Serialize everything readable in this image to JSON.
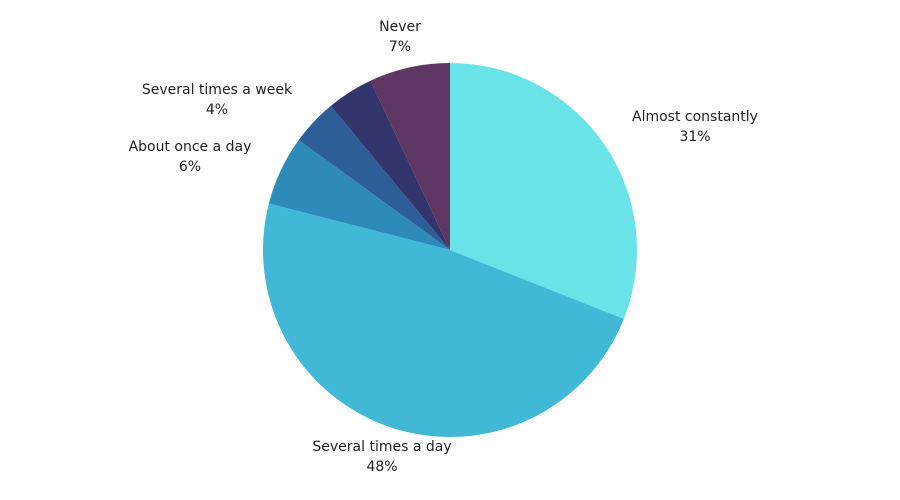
{
  "chart_data": {
    "type": "pie",
    "categories": [
      "Almost constantly",
      "Several times a day",
      "About once a day",
      null,
      "Several times a week",
      "Never"
    ],
    "values": [
      31,
      48,
      6,
      4,
      4,
      7
    ],
    "value_labels": [
      "31%",
      "48%",
      "6%",
      null,
      "4%",
      "7%"
    ],
    "colors": [
      "#6ae3e8",
      "#42b8d7",
      "#2e8bb9",
      "#2d5e98",
      "#31356b",
      "#5e3764"
    ]
  }
}
